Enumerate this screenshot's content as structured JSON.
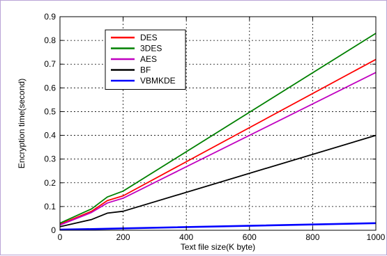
{
  "chart_data": {
    "type": "line",
    "title": "",
    "xlabel": "Text file size(K byte)",
    "ylabel": "Encryption time(second)",
    "xlim": [
      0,
      1000
    ],
    "ylim": [
      0,
      0.9
    ],
    "xticks": [
      0,
      200,
      400,
      600,
      800,
      1000
    ],
    "yticks": [
      0,
      0.1,
      0.2,
      0.3,
      0.4,
      0.5,
      0.6,
      0.7,
      0.8,
      0.9
    ],
    "xtick_labels": [
      "0",
      "200",
      "400",
      "600",
      "800",
      "1000"
    ],
    "ytick_labels": [
      "0",
      "0.1",
      "0.2",
      "0.3",
      "0.4",
      "0.5",
      "0.6",
      "0.7",
      "0.8",
      "0.9"
    ],
    "grid": true,
    "legend_position": "top-left",
    "series": [
      {
        "name": "DES",
        "color": "#ff0000",
        "x": [
          0,
          100,
          150,
          200,
          1000
        ],
        "y": [
          0.025,
          0.08,
          0.125,
          0.145,
          0.72
        ]
      },
      {
        "name": "3DES",
        "color": "#008000",
        "x": [
          0,
          100,
          150,
          200,
          1000
        ],
        "y": [
          0.03,
          0.09,
          0.14,
          0.165,
          0.83
        ]
      },
      {
        "name": "AES",
        "color": "#c000c0",
        "x": [
          0,
          100,
          150,
          200,
          1000
        ],
        "y": [
          0.022,
          0.075,
          0.115,
          0.135,
          0.665
        ]
      },
      {
        "name": "BF",
        "color": "#000000",
        "x": [
          0,
          100,
          150,
          200,
          1000
        ],
        "y": [
          0.015,
          0.045,
          0.072,
          0.08,
          0.4
        ]
      },
      {
        "name": "VBMKDE",
        "color": "#0000ff",
        "x": [
          0,
          100,
          200,
          1000
        ],
        "y": [
          0.003,
          0.005,
          0.008,
          0.03
        ]
      }
    ]
  }
}
